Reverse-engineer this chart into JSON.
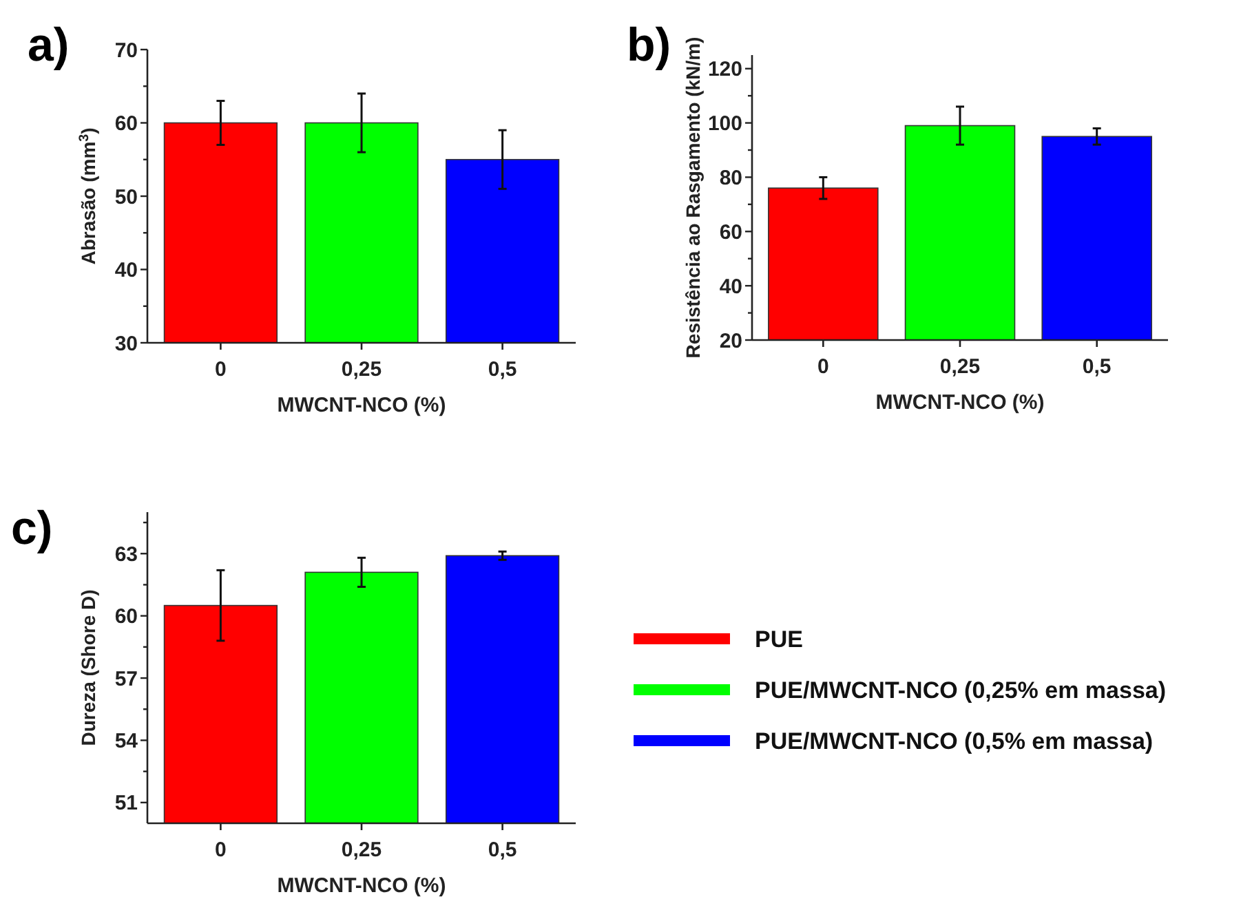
{
  "chart_data": [
    {
      "type": "bar",
      "title": "a)",
      "xlabel": "MWCNT-NCO (%)",
      "ylabel": "Abrasão (mm$^{3}$)",
      "categories": [
        "0",
        "0,25",
        "0,5"
      ],
      "ylim": [
        30,
        70
      ],
      "yticks": [
        30,
        {
          "value": 35,
          "label": null
        },
        40,
        {
          "value": 45,
          "label": null
        },
        50,
        {
          "value": 55,
          "label": null
        },
        60,
        {
          "value": 65,
          "label": null
        },
        70
      ],
      "series": [
        {
          "color": "#ff0000",
          "values": [
            60,
            null,
            null
          ],
          "errors": [
            3,
            null,
            null
          ]
        },
        {
          "color": "#00ff00",
          "values": [
            null,
            60,
            null
          ],
          "errors": [
            null,
            4,
            null
          ]
        },
        {
          "color": "#0000ff",
          "values": [
            null,
            null,
            55
          ],
          "errors": [
            null,
            null,
            4
          ]
        }
      ]
    },
    {
      "type": "bar",
      "title": "b)",
      "xlabel": "MWCNT-NCO (%)",
      "ylabel": "Resistência ao Rasgamento (kN/m)",
      "categories": [
        "0",
        "0,25",
        "0,5"
      ],
      "ylim": [
        20,
        125
      ],
      "yticks": [
        20,
        {
          "value": 30,
          "label": null
        },
        40,
        {
          "value": 50,
          "label": null
        },
        60,
        {
          "value": 70,
          "label": null
        },
        80,
        {
          "value": 90,
          "label": null
        },
        100,
        {
          "value": 110,
          "label": null
        },
        120
      ],
      "series": [
        {
          "color": "#ff0000",
          "values": [
            76,
            null,
            null
          ],
          "errors": [
            4,
            null,
            null
          ]
        },
        {
          "color": "#00ff00",
          "values": [
            null,
            99,
            null
          ],
          "errors": [
            null,
            7,
            null
          ]
        },
        {
          "color": "#0000ff",
          "values": [
            null,
            null,
            95
          ],
          "errors": [
            null,
            null,
            3
          ]
        }
      ]
    },
    {
      "type": "bar",
      "title": "c)",
      "xlabel": "MWCNT-NCO (%)",
      "ylabel": "Dureza (Shore D)",
      "categories": [
        "0",
        "0,25",
        "0,5"
      ],
      "ylim": [
        50,
        65
      ],
      "yticks": [
        51,
        {
          "value": 52.5,
          "label": null
        },
        54,
        {
          "value": 55.5,
          "label": null
        },
        57,
        {
          "value": 58.5,
          "label": null
        },
        60,
        {
          "value": 61.5,
          "label": null
        },
        63,
        {
          "value": 64.5,
          "label": null
        }
      ],
      "legend": "right",
      "series": [
        {
          "name": "PUE",
          "color": "#ff0000",
          "values": [
            60.5,
            null,
            null
          ],
          "errors": [
            1.7,
            null,
            null
          ]
        },
        {
          "name": "PUE/MWCNT-NCO (0,25%  em massa)",
          "color": "#00ff00",
          "values": [
            null,
            62.1,
            null
          ],
          "errors": [
            null,
            0.7,
            null
          ]
        },
        {
          "name": "PUE/MWCNT-NCO (0,5%  em massa)",
          "color": "#0000ff",
          "values": [
            null,
            null,
            62.9
          ],
          "errors": [
            null,
            null,
            0.2
          ]
        }
      ]
    }
  ]
}
